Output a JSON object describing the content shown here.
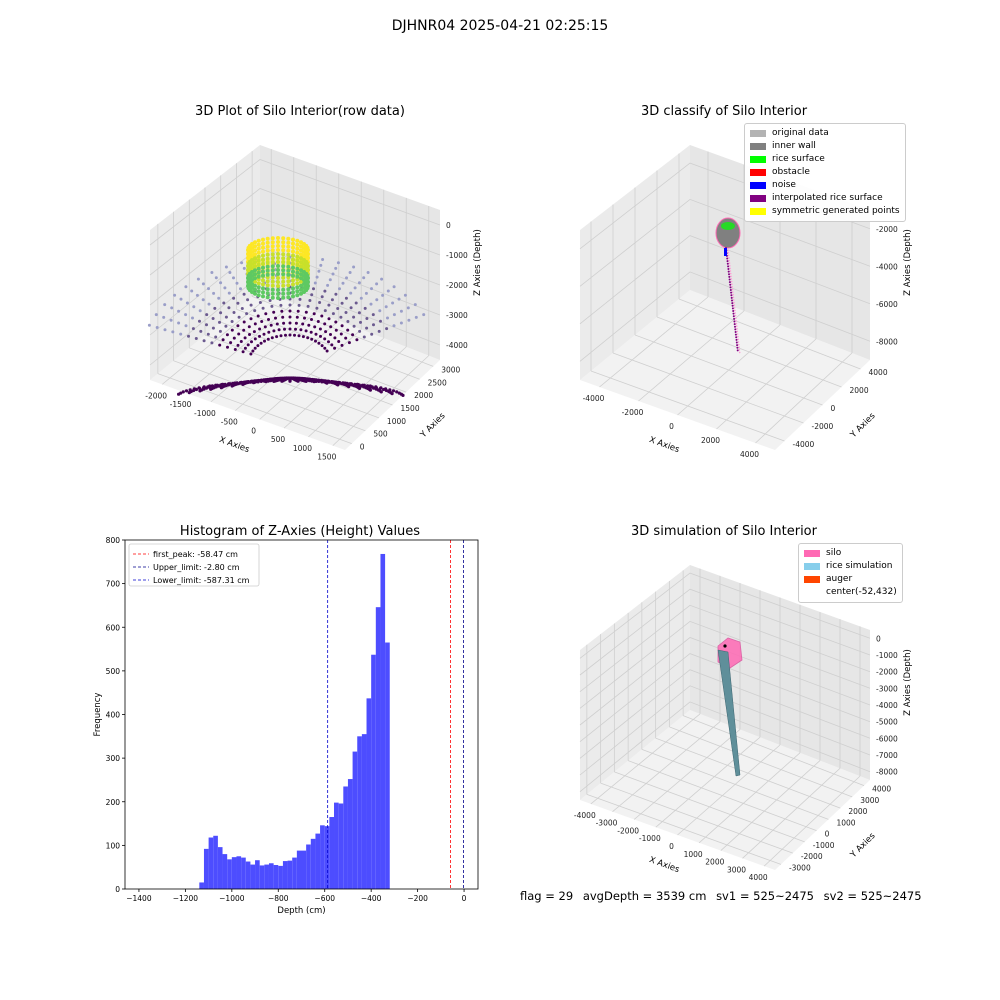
{
  "suptitle": "DJHNR04 2025-04-21 02:25:15",
  "footer": {
    "flag": "flag = 29",
    "avgDepth": "avgDepth = 3539 cm",
    "sv1": "sv1 = 525~2475",
    "sv2": "sv2 = 525~2475"
  },
  "chart_data": [
    {
      "type": "scatter",
      "title": "3D Plot of Silo Interior(row data)",
      "xlabel": "X Axies",
      "ylabel": "Y Axies",
      "zlabel": "Z Axies (Depth)",
      "x_ticks": [
        "-2000",
        "-1500",
        "-1000",
        "-500",
        "0",
        "500",
        "1000",
        "1500"
      ],
      "y_ticks": [
        "0",
        "500",
        "1000",
        "1500",
        "2000",
        "2500",
        "3000"
      ],
      "z_ticks": [
        "0",
        "-1000",
        "-2000",
        "-3000",
        "-4000"
      ],
      "colormap": [
        "#440154",
        "#3b528b",
        "#21918c",
        "#5ec962",
        "#fde725"
      ],
      "point_color": "#9a9ec8"
    },
    {
      "type": "scatter",
      "title": "3D classify of Silo Interior",
      "xlabel": "X Axies",
      "ylabel": "Y Axies",
      "zlabel": "Z Axies (Depth)",
      "x_ticks": [
        "-4000",
        "-2000",
        "0",
        "2000",
        "4000"
      ],
      "y_ticks": [
        "-4000",
        "-2000",
        "0",
        "2000",
        "4000"
      ],
      "z_ticks": [
        "-2000",
        "-4000",
        "-6000",
        "-8000"
      ],
      "legend": [
        {
          "label": "original data",
          "color": "#b3b3b3"
        },
        {
          "label": "inner wall",
          "color": "#808080"
        },
        {
          "label": "rice surface",
          "color": "#00ff00"
        },
        {
          "label": "obstacle",
          "color": "#ff0000"
        },
        {
          "label": "noise",
          "color": "#0000ff"
        },
        {
          "label": "interpolated rice surface",
          "color": "#800080"
        },
        {
          "label": "symmetric generated points",
          "color": "#ffff00"
        }
      ]
    },
    {
      "type": "bar",
      "title": "Histogram of Z-Axies (Height) Values",
      "xlabel": "Depth (cm)",
      "ylabel": "Frequency",
      "xlim": [
        -1460,
        60
      ],
      "ylim": [
        0,
        800
      ],
      "x_ticks": [
        -1400,
        -1200,
        -1000,
        -800,
        -600,
        -400,
        -200,
        0
      ],
      "y_ticks": [
        0,
        100,
        200,
        300,
        400,
        500,
        600,
        700,
        800
      ],
      "bar_color": "#4d4dff",
      "bin_start": -1140,
      "bin_width": 20,
      "values": [
        15,
        92,
        118,
        122,
        96,
        80,
        68,
        73,
        75,
        72,
        63,
        56,
        66,
        54,
        56,
        59,
        55,
        53,
        64,
        65,
        72,
        88,
        88,
        102,
        115,
        127,
        146,
        144,
        165,
        198,
        196,
        235,
        252,
        315,
        350,
        355,
        437,
        537,
        646,
        768,
        565
      ],
      "lines": [
        {
          "label": "first_peak: -58.47 cm",
          "value": -58.47,
          "color": "#ff0000"
        },
        {
          "label": "Upper_limit: -2.80 cm",
          "value": -2.8,
          "color": "#00008b"
        },
        {
          "label": "Lower_limit: -587.31 cm",
          "value": -587.31,
          "color": "#0000cd"
        }
      ]
    },
    {
      "type": "scatter",
      "title": "3D simulation of Silo Interior",
      "xlabel": "X Axies",
      "ylabel": "Y Axies",
      "zlabel": "Z Axies (Depth)",
      "x_ticks": [
        "-4000",
        "-3000",
        "-2000",
        "-1000",
        "0",
        "1000",
        "2000",
        "3000",
        "4000"
      ],
      "y_ticks": [
        "-3000",
        "-2000",
        "-1000",
        "0",
        "1000",
        "2000",
        "3000",
        "4000"
      ],
      "z_ticks": [
        "0",
        "-1000",
        "-2000",
        "-3000",
        "-4000",
        "-5000",
        "-6000",
        "-7000",
        "-8000"
      ],
      "legend": [
        {
          "label": "silo",
          "color": "#ff69b4"
        },
        {
          "label": "rice simulation",
          "color": "#87ceeb"
        },
        {
          "label": "auger",
          "color": "#ff4500"
        },
        {
          "label": "center(-52,432)",
          "color": ""
        }
      ]
    }
  ]
}
